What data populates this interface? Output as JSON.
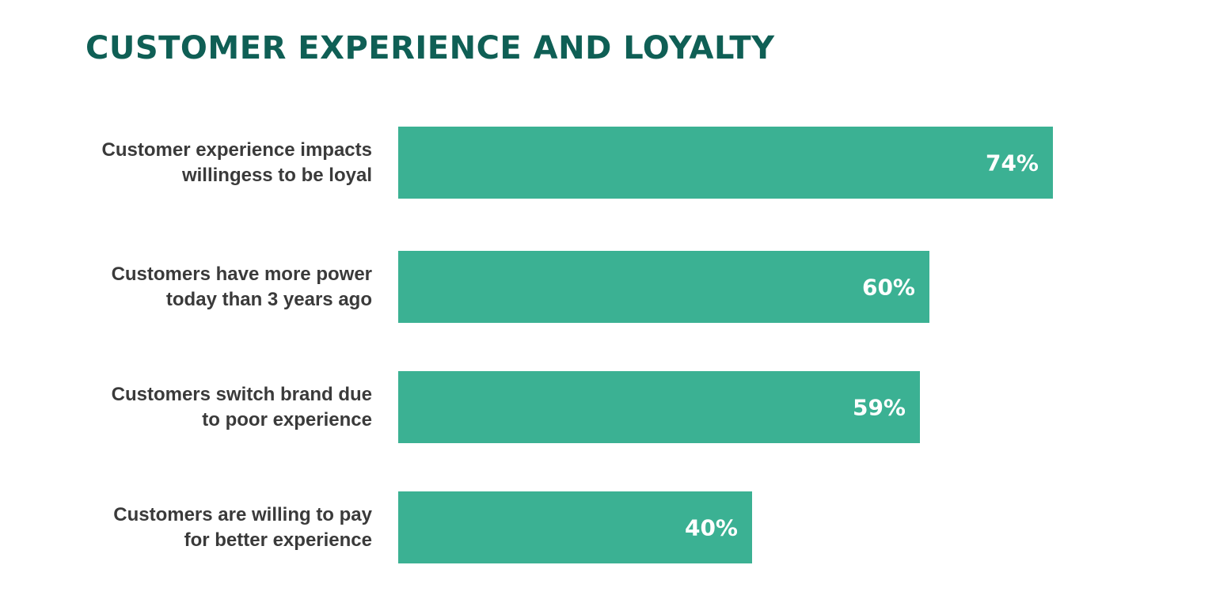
{
  "title": "CUSTOMER EXPERIENCE AND LOYALTY",
  "colors": {
    "title": "#0f5f55",
    "bar": "#3bb193",
    "label": "#3a3a3a",
    "value": "#ffffff"
  },
  "chart_data": {
    "type": "bar",
    "orientation": "horizontal",
    "title": "CUSTOMER EXPERIENCE AND LOYALTY",
    "xlabel": "",
    "ylabel": "",
    "categories": [
      "Customer experience impacts willingess to be loyal",
      "Customers have more power today than 3 years ago",
      "Customers switch brand due to poor experience",
      "Customers are willing to pay for better experience"
    ],
    "values": [
      74,
      60,
      59,
      40
    ],
    "value_labels": [
      "74%",
      "60%",
      "59%",
      "40%"
    ],
    "unit": "%",
    "grid": false,
    "legend": null
  },
  "rows": [
    {
      "label_line1": "Customer experience impacts",
      "label_line2": "willingess to be loyal",
      "value": 74,
      "value_label": "74%"
    },
    {
      "label_line1": "Customers have more power",
      "label_line2": "today than 3 years ago",
      "value": 60,
      "value_label": "60%"
    },
    {
      "label_line1": "Customers switch brand due",
      "label_line2": "to poor experience",
      "value": 59,
      "value_label": "59%"
    },
    {
      "label_line1": "Customers are willing to pay",
      "label_line2": "for better experience",
      "value": 40,
      "value_label": "40%"
    }
  ]
}
